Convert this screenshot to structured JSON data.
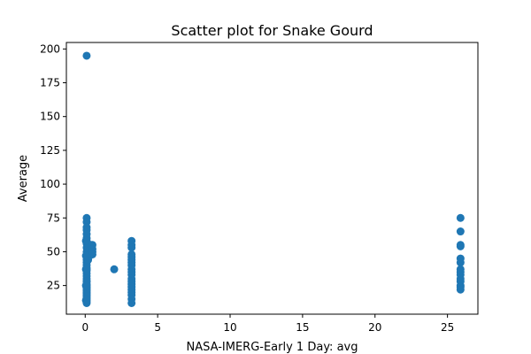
{
  "chart_data": {
    "type": "scatter",
    "title": "Scatter plot for Snake Gourd",
    "xlabel": "NASA-IMERG-Early 1 Day: avg",
    "ylabel": "Average",
    "xlim": [
      -1.3,
      27.1
    ],
    "ylim": [
      3.8,
      204.8
    ],
    "xticks": [
      0,
      5,
      10,
      15,
      20,
      25
    ],
    "yticks": [
      25,
      50,
      75,
      100,
      125,
      150,
      175,
      200
    ],
    "grid": false,
    "marker_color": "#1f77b4",
    "series": [
      {
        "x": [
          0.1,
          0.1,
          0.1,
          0.1,
          0.1,
          0.1,
          0.1,
          0.1,
          0.1,
          0.1,
          0.1,
          0.1,
          0.1,
          0.1,
          0.1,
          0.1,
          0.1,
          0.1,
          0.1,
          0.1,
          0.1,
          0.1,
          0.1,
          0.1,
          0.1,
          0.1,
          0.1,
          0.1,
          0.1,
          0.1,
          0.1,
          0.1,
          0.1,
          0.1,
          0.1,
          0.1,
          0.1,
          0.1,
          0.1,
          0.1,
          0.2,
          0.2,
          0.2,
          0.2,
          0.2,
          0.2,
          0.3,
          0.3,
          0.3,
          0.3,
          0.4,
          0.4,
          0.5,
          0.5,
          0.5,
          0.5,
          0.05,
          0.05,
          0.05,
          0.05,
          0.05,
          2.0,
          3.2,
          3.2,
          3.2,
          3.2,
          3.2,
          3.2,
          3.2,
          3.2,
          3.2,
          3.2,
          3.2,
          3.2,
          3.2,
          3.2,
          3.2,
          3.2,
          3.2,
          3.2,
          3.2,
          3.2,
          25.9,
          25.9,
          25.9,
          25.9,
          25.9,
          25.9,
          25.9,
          25.9,
          25.9,
          25.9,
          25.9,
          25.9,
          25.9,
          25.9
        ],
        "y": [
          195,
          75,
          72,
          68,
          66,
          63,
          60,
          58,
          56,
          53,
          50,
          48,
          46,
          44,
          42,
          40,
          38,
          36,
          34,
          32,
          30,
          28,
          26,
          25,
          24,
          23,
          22,
          21,
          20,
          19,
          18,
          17,
          16,
          15,
          14,
          13,
          12,
          47,
          37,
          28,
          55,
          52,
          50,
          48,
          46,
          44,
          54,
          51,
          49,
          47,
          55,
          50,
          55,
          52,
          50,
          48,
          58,
          47,
          37,
          25,
          14,
          37,
          58,
          55,
          53,
          48,
          46,
          44,
          42,
          40,
          37,
          35,
          33,
          30,
          28,
          26,
          24,
          22,
          20,
          18,
          15,
          12,
          75,
          65,
          55,
          54,
          45,
          42,
          37,
          35,
          33,
          30,
          28,
          25,
          24,
          22
        ]
      }
    ]
  }
}
